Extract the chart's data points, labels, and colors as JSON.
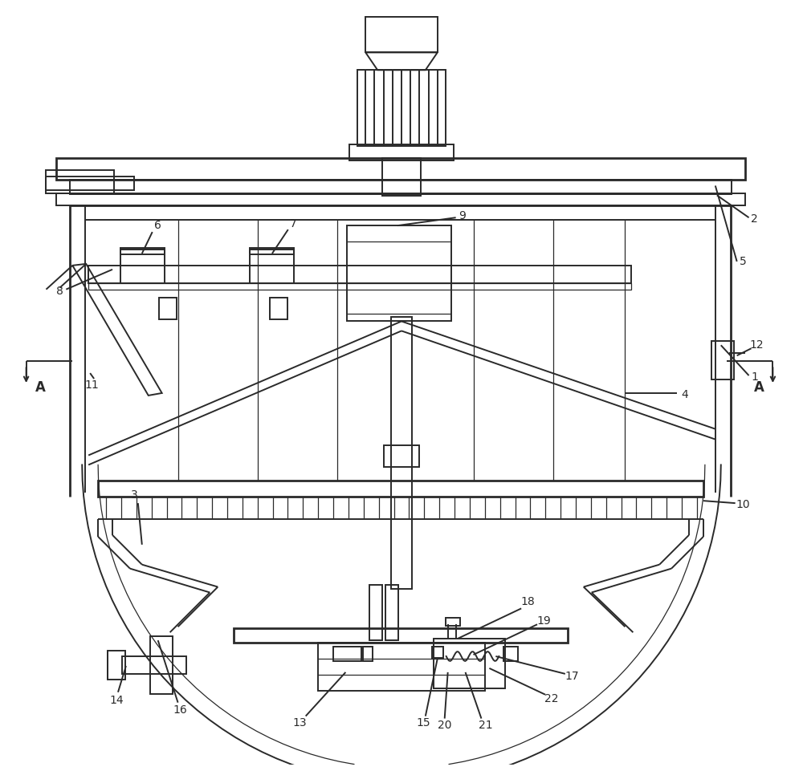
{
  "bg_color": "#ffffff",
  "line_color": "#2a2a2a",
  "lw": 1.4,
  "lw_thin": 0.9,
  "lw_thick": 2.0
}
